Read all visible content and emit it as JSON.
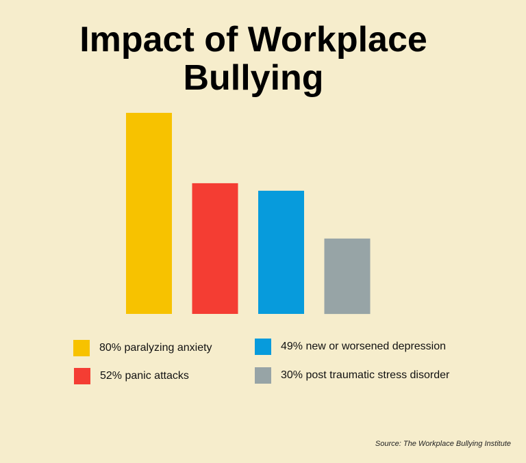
{
  "chart_data": {
    "type": "bar",
    "title": "Impact of Workplace Bullying",
    "title_lines": [
      "Impact of Workplace",
      "Bullying"
    ],
    "categories": [
      "80% paralyzing anxiety",
      "52% panic attacks",
      "49% new or worsened depression",
      "30% post traumatic stress disorder"
    ],
    "values": [
      80,
      52,
      49,
      30
    ],
    "colors": [
      "#f7c200",
      "#f43d33",
      "#079bdc",
      "#97a4a6"
    ],
    "ylim": [
      0,
      80
    ],
    "grid": false,
    "legend": "bottom",
    "source": "Source: The Workplace Bullying Institute"
  }
}
